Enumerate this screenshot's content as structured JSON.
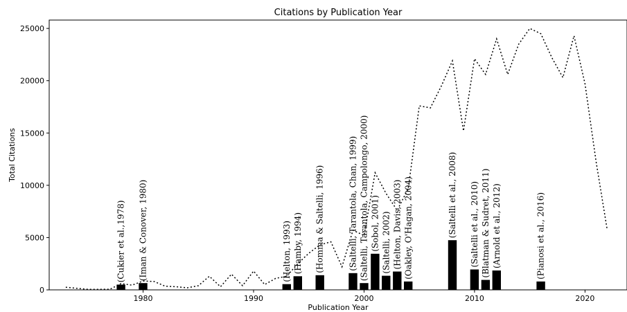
{
  "chart_data": {
    "type": "bar",
    "title": "Citations by Publication Year",
    "xlabel": "Publication Year",
    "ylabel": "Total Citations",
    "xlim": [
      1971.5,
      2023.8
    ],
    "ylim": [
      0,
      25800
    ],
    "xticks": [
      1980,
      1990,
      2000,
      2010,
      2020
    ],
    "yticks": [
      0,
      5000,
      10000,
      15000,
      20000,
      25000
    ],
    "grid": false,
    "bars": [
      {
        "x": 1978,
        "value": 500,
        "label": "(Cukier et al.,1978)"
      },
      {
        "x": 1980,
        "value": 650,
        "label": "(Iman & Conover, 1980)"
      },
      {
        "x": 1993,
        "value": 550,
        "label": "(Helton, 1993)"
      },
      {
        "x": 1994,
        "value": 1300,
        "label": "(Hamby, 1994)"
      },
      {
        "x": 1996,
        "value": 1400,
        "label": "(Homma & Saltelli, 1996)"
      },
      {
        "x": 1999,
        "value": 1600,
        "label": "(Saltelli, Tarantola, Chan, 1999)"
      },
      {
        "x": 2000,
        "value": 650,
        "label": "(Saltelli, Tarantola, Campolongo, 2000)"
      },
      {
        "x": 2001,
        "value": 3450,
        "label": "(Sobol, 2001)"
      },
      {
        "x": 2002,
        "value": 1350,
        "label": "(Saltelli, 2002)"
      },
      {
        "x": 2003,
        "value": 1750,
        "label": "(Helton, Davis, 2003)"
      },
      {
        "x": 2004,
        "value": 800,
        "label": "(Oakley, O'Hagan, 2004)"
      },
      {
        "x": 2008,
        "value": 4750,
        "label": "(Saltelli et al., 2008)"
      },
      {
        "x": 2010,
        "value": 1950,
        "label": "(Saltelli et al., 2010)"
      },
      {
        "x": 2011,
        "value": 950,
        "label": "(Blatman & Sudret, 2011)"
      },
      {
        "x": 2012,
        "value": 1850,
        "label": "(Arnold et al., 2012)"
      },
      {
        "x": 2016,
        "value": 800,
        "label": "(Pianosi et al., 2016)"
      }
    ],
    "line": {
      "style": "dotted",
      "x": [
        1973,
        1974,
        1975,
        1976,
        1977,
        1978,
        1979,
        1980,
        1981,
        1982,
        1983,
        1984,
        1985,
        1986,
        1987,
        1988,
        1989,
        1990,
        1991,
        1992,
        1993,
        1994,
        1995,
        1996,
        1997,
        1998,
        1999,
        2000,
        2001,
        2002,
        2003,
        2004,
        2005,
        2006,
        2007,
        2008,
        2009,
        2010,
        2011,
        2012,
        2013,
        2014,
        2015,
        2016,
        2017,
        2018,
        2019,
        2020,
        2021,
        2022
      ],
      "y": [
        250,
        150,
        50,
        50,
        60,
        600,
        450,
        850,
        800,
        350,
        300,
        200,
        400,
        1300,
        300,
        1500,
        400,
        1800,
        500,
        1100,
        1300,
        2500,
        3500,
        4300,
        4600,
        2200,
        5700,
        5200,
        11200,
        9200,
        7600,
        9700,
        17600,
        17400,
        19500,
        21900,
        15200,
        22100,
        20600,
        24000,
        20600,
        23500,
        25000,
        24500,
        22200,
        20300,
        24300,
        19700,
        12300,
        5800
      ]
    }
  }
}
